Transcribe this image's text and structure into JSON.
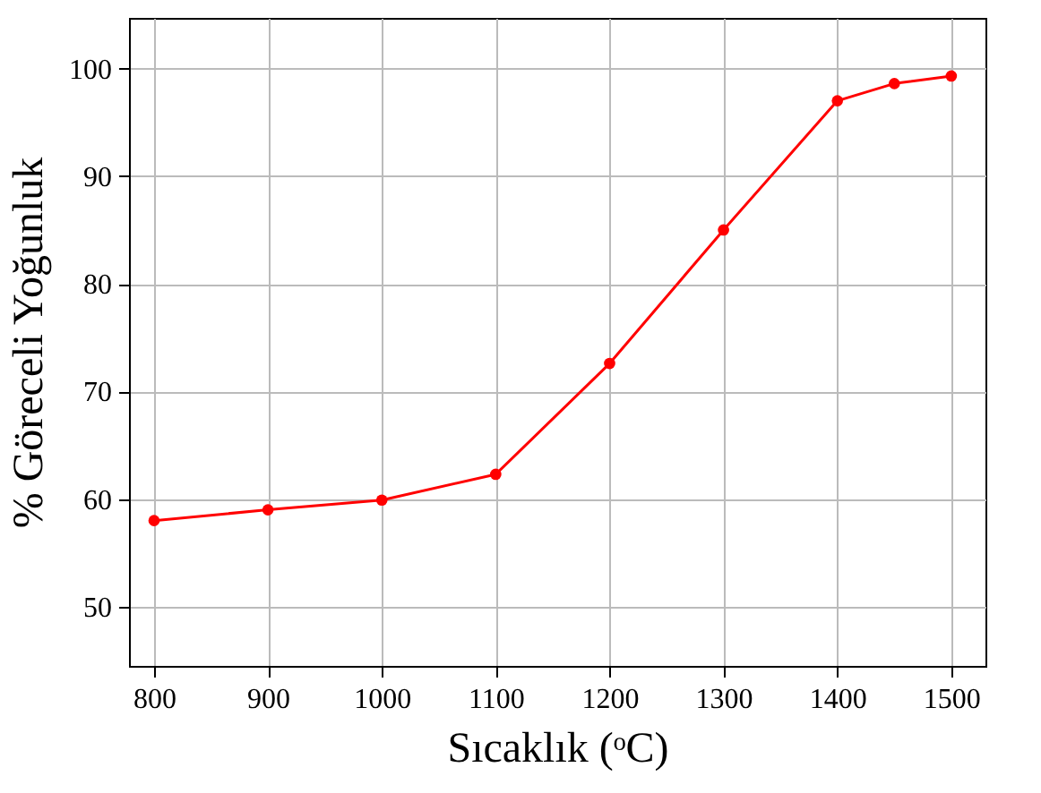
{
  "chart_data": {
    "type": "line",
    "xlabel": "Sıcaklık (ᵒC)",
    "ylabel": "% Göreceli Yoğunluk",
    "x": [
      800,
      900,
      1000,
      1100,
      1200,
      1300,
      1400,
      1450,
      1500
    ],
    "series": [
      {
        "color": "#ff0000",
        "values": [
          58,
          59,
          59.9,
          62.3,
          72.6,
          85,
          97,
          98.6,
          99.3
        ]
      }
    ],
    "xlim": [
      778,
      1530
    ],
    "xticks": [
      800,
      900,
      1000,
      1100,
      1200,
      1300,
      1400,
      1500
    ],
    "ylim": [
      44.5,
      104.7
    ],
    "yticks": [
      50,
      60,
      70,
      80,
      90,
      100
    ],
    "grid": true,
    "marker": "circle",
    "line_style": "solid"
  }
}
